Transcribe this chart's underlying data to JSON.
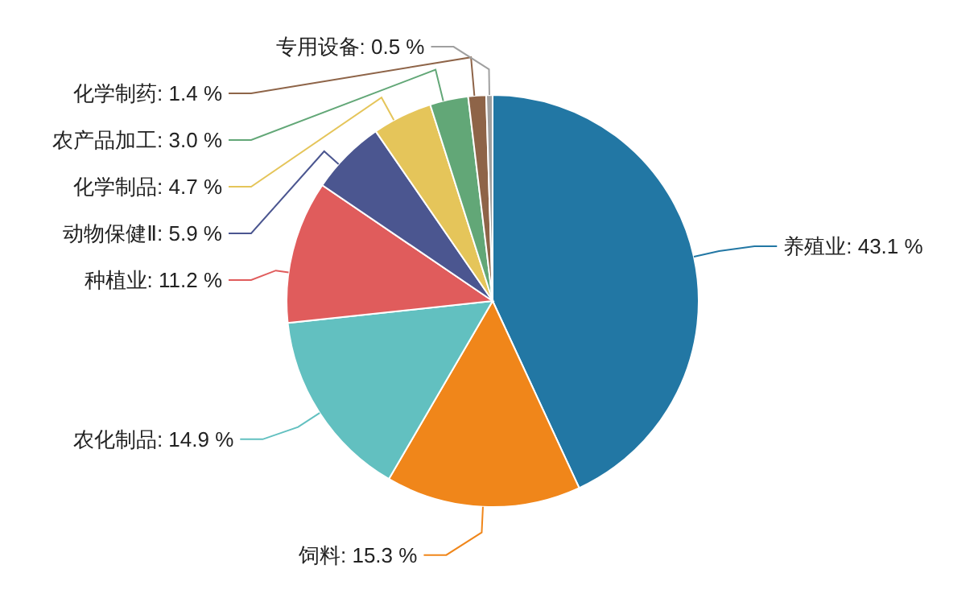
{
  "chart_data": {
    "type": "pie",
    "categories": [
      "养殖业",
      "饲料",
      "农化制品",
      "种植业",
      "动物保健Ⅱ",
      "化学制品",
      "农产品加工",
      "化学制药",
      "专用设备"
    ],
    "values": [
      43.1,
      15.3,
      14.9,
      11.2,
      5.9,
      4.7,
      3.0,
      1.4,
      0.5
    ],
    "value_labels": [
      "43.1 %",
      "15.3 %",
      "14.9 %",
      "11.2 %",
      "5.9 %",
      "4.7 %",
      "3.0 %",
      "1.4 %",
      "0.5 %"
    ],
    "colors": [
      "#2277a4",
      "#f0861a",
      "#62c0c0",
      "#e05c5c",
      "#4b5690",
      "#e5c55a",
      "#62a777",
      "#8e6448",
      "#a0a0a0"
    ]
  }
}
